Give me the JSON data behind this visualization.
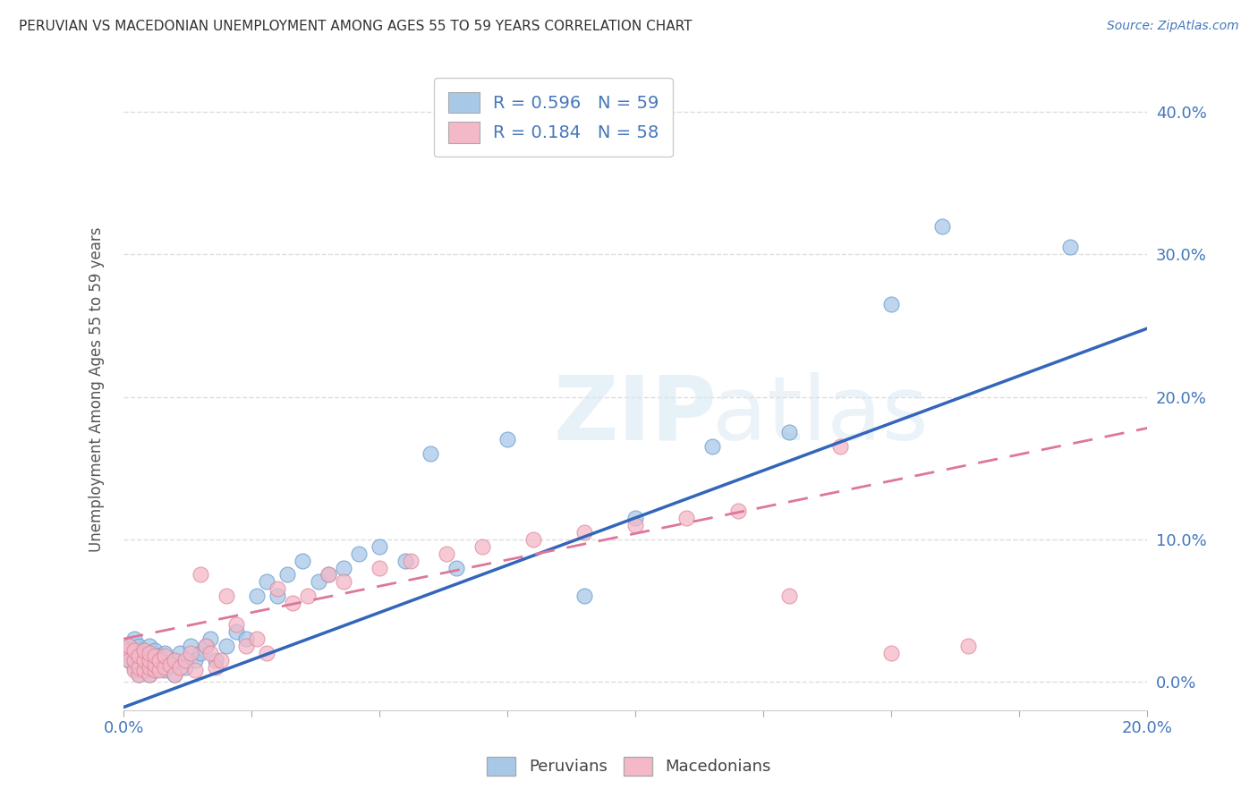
{
  "title": "PERUVIAN VS MACEDONIAN UNEMPLOYMENT AMONG AGES 55 TO 59 YEARS CORRELATION CHART",
  "source": "Source: ZipAtlas.com",
  "ylabel": "Unemployment Among Ages 55 to 59 years",
  "xlim": [
    0.0,
    0.2
  ],
  "ylim": [
    -0.02,
    0.43
  ],
  "peruvian_color": "#a8c8e8",
  "macedonian_color": "#f4b8c8",
  "peruvian_edge_color": "#6699cc",
  "macedonian_edge_color": "#dd8899",
  "peruvian_R": 0.596,
  "peruvian_N": 59,
  "macedonian_R": 0.184,
  "macedonian_N": 58,
  "peruvian_line_color": "#3366bb",
  "macedonian_line_color": "#dd7799",
  "peru_line_x": [
    0.0,
    0.2
  ],
  "peru_line_y": [
    -0.018,
    0.248
  ],
  "mac_line_x": [
    0.0,
    0.2
  ],
  "mac_line_y": [
    0.03,
    0.178
  ],
  "watermark_color": "#d8e8f4",
  "title_color": "#333333",
  "source_color": "#4477bb",
  "tick_color": "#4477bb",
  "ylabel_color": "#555555",
  "grid_color": "#dddddd",
  "ytick_labels": [
    "0.0%",
    "10.0%",
    "20.0%",
    "30.0%",
    "40.0%"
  ],
  "ytick_vals": [
    0.0,
    0.1,
    0.2,
    0.3,
    0.4
  ],
  "xtick_labels_show": [
    "0.0%",
    "20.0%"
  ],
  "xtick_vals_show": [
    0.0,
    0.2
  ],
  "xtick_vals_minor": [
    0.025,
    0.05,
    0.075,
    0.1,
    0.125,
    0.15,
    0.175
  ],
  "peru_scatter_x": [
    0.0005,
    0.001,
    0.001,
    0.002,
    0.002,
    0.002,
    0.003,
    0.003,
    0.003,
    0.003,
    0.004,
    0.004,
    0.004,
    0.005,
    0.005,
    0.005,
    0.005,
    0.006,
    0.006,
    0.006,
    0.007,
    0.007,
    0.008,
    0.008,
    0.009,
    0.01,
    0.01,
    0.011,
    0.012,
    0.013,
    0.014,
    0.015,
    0.016,
    0.017,
    0.018,
    0.02,
    0.022,
    0.024,
    0.026,
    0.028,
    0.03,
    0.032,
    0.035,
    0.038,
    0.04,
    0.043,
    0.046,
    0.05,
    0.055,
    0.06,
    0.065,
    0.075,
    0.09,
    0.1,
    0.115,
    0.13,
    0.15,
    0.16,
    0.185
  ],
  "peru_scatter_y": [
    0.02,
    0.015,
    0.025,
    0.01,
    0.02,
    0.03,
    0.005,
    0.012,
    0.018,
    0.025,
    0.008,
    0.015,
    0.022,
    0.005,
    0.01,
    0.018,
    0.025,
    0.008,
    0.015,
    0.022,
    0.01,
    0.018,
    0.008,
    0.02,
    0.012,
    0.005,
    0.015,
    0.02,
    0.01,
    0.025,
    0.015,
    0.02,
    0.025,
    0.03,
    0.015,
    0.025,
    0.035,
    0.03,
    0.06,
    0.07,
    0.06,
    0.075,
    0.085,
    0.07,
    0.075,
    0.08,
    0.09,
    0.095,
    0.085,
    0.16,
    0.08,
    0.17,
    0.06,
    0.115,
    0.165,
    0.175,
    0.265,
    0.32,
    0.305
  ],
  "mac_scatter_x": [
    0.0005,
    0.001,
    0.001,
    0.002,
    0.002,
    0.002,
    0.003,
    0.003,
    0.003,
    0.004,
    0.004,
    0.004,
    0.005,
    0.005,
    0.005,
    0.005,
    0.006,
    0.006,
    0.006,
    0.007,
    0.007,
    0.008,
    0.008,
    0.009,
    0.01,
    0.01,
    0.011,
    0.012,
    0.013,
    0.014,
    0.015,
    0.016,
    0.017,
    0.018,
    0.019,
    0.02,
    0.022,
    0.024,
    0.026,
    0.028,
    0.03,
    0.033,
    0.036,
    0.04,
    0.043,
    0.05,
    0.056,
    0.063,
    0.07,
    0.08,
    0.09,
    0.1,
    0.11,
    0.12,
    0.13,
    0.14,
    0.15,
    0.165
  ],
  "mac_scatter_y": [
    0.022,
    0.015,
    0.025,
    0.008,
    0.015,
    0.022,
    0.005,
    0.01,
    0.018,
    0.008,
    0.015,
    0.022,
    0.005,
    0.01,
    0.015,
    0.02,
    0.008,
    0.012,
    0.018,
    0.008,
    0.015,
    0.01,
    0.018,
    0.012,
    0.005,
    0.015,
    0.01,
    0.015,
    0.02,
    0.008,
    0.075,
    0.025,
    0.02,
    0.01,
    0.015,
    0.06,
    0.04,
    0.025,
    0.03,
    0.02,
    0.065,
    0.055,
    0.06,
    0.075,
    0.07,
    0.08,
    0.085,
    0.09,
    0.095,
    0.1,
    0.105,
    0.11,
    0.115,
    0.12,
    0.06,
    0.165,
    0.02,
    0.025
  ]
}
